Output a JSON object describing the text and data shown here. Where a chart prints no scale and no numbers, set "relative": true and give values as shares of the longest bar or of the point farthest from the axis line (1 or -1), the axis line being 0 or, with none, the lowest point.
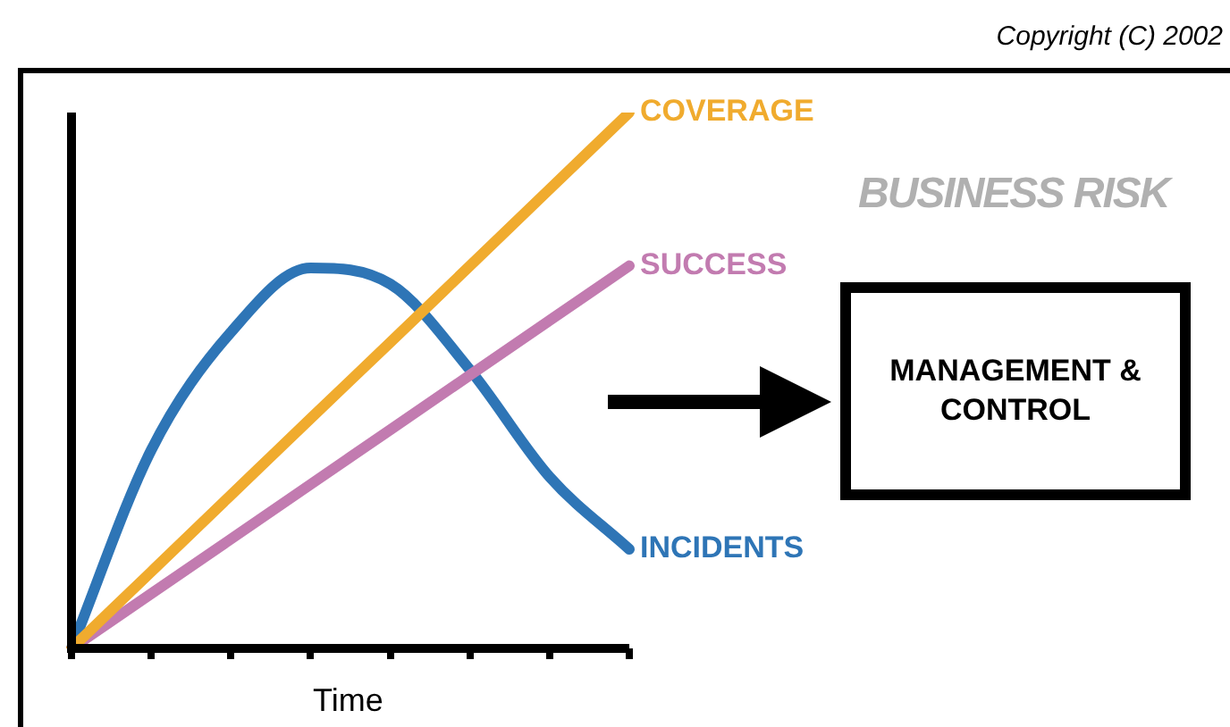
{
  "chart_data": {
    "type": "line",
    "relative": true,
    "xlabel": "Time",
    "categories": [
      null,
      null,
      null,
      null,
      null,
      null,
      null,
      null
    ],
    "series": [
      {
        "name": "COVERAGE",
        "color": "#f0ab2e",
        "values": [
          0,
          0.143,
          0.286,
          0.429,
          0.571,
          0.714,
          0.857,
          1
        ]
      },
      {
        "name": "SUCCESS",
        "color": "#c27bb0",
        "values": [
          0,
          0.102,
          0.204,
          0.306,
          0.408,
          0.51,
          0.612,
          0.714
        ]
      },
      {
        "name": "INCIDENTS",
        "color": "#2e75b6",
        "values": [
          0,
          0.37,
          0.59,
          0.71,
          0.68,
          0.52,
          0.32,
          0.185
        ]
      }
    ],
    "tick_labels": false,
    "grid": false,
    "legend": false,
    "marker": "none",
    "line_style": "solid",
    "annotations": [
      "BUSINESS RISK",
      "MANAGEMENT & CONTROL",
      "Copyright (C) 2002"
    ]
  }
}
